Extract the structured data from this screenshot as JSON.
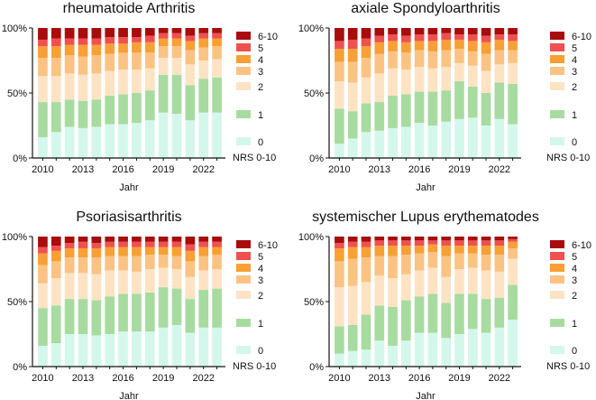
{
  "shared": {
    "x_axis_label": "Jahr",
    "x_tick_labels": [
      "2010",
      "2013",
      "2016",
      "2019",
      "2022"
    ],
    "y_tick_labels": [
      "0%",
      "50%",
      "100%"
    ],
    "legend_title": "NRS 0-10",
    "categories": [
      "0",
      "1",
      "2",
      "3",
      "4",
      "5",
      "6-10"
    ],
    "colors": [
      "#d4f7ec",
      "#a8dba0",
      "#fde3c4",
      "#fbc383",
      "#f8a035",
      "#f0504f",
      "#a80c0c"
    ]
  },
  "chart_data": [
    {
      "type": "bar",
      "stacked": true,
      "title": "rheumatoide Arthritis",
      "xlabel": "Jahr",
      "ylabel": "",
      "ylim": [
        0,
        100
      ],
      "legend_title": "NRS 0-10",
      "years": [
        2010,
        2011,
        2012,
        2013,
        2014,
        2015,
        2016,
        2017,
        2018,
        2019,
        2020,
        2021,
        2022,
        2023
      ],
      "series": [
        {
          "name": "0",
          "values": [
            16,
            20,
            24,
            23,
            24,
            26,
            26,
            27,
            29,
            35,
            34,
            29,
            35,
            35
          ]
        },
        {
          "name": "1",
          "values": [
            27,
            23,
            21,
            21,
            21,
            22,
            23,
            23,
            23,
            29,
            30,
            27,
            26,
            27
          ]
        },
        {
          "name": "2",
          "values": [
            20,
            20,
            20,
            20,
            20,
            19,
            19,
            18,
            17,
            13,
            13,
            16,
            14,
            14
          ]
        },
        {
          "name": "3",
          "values": [
            14,
            14,
            14,
            14,
            14,
            13,
            13,
            13,
            12,
            9,
            9,
            11,
            10,
            10
          ]
        },
        {
          "name": "4",
          "values": [
            9,
            9,
            8,
            9,
            8,
            8,
            7,
            8,
            8,
            6,
            6,
            7,
            7,
            6
          ]
        },
        {
          "name": "5",
          "values": [
            5,
            6,
            5,
            5,
            5,
            5,
            5,
            4,
            5,
            4,
            4,
            4,
            4,
            4
          ]
        },
        {
          "name": "6-10",
          "values": [
            9,
            8,
            8,
            8,
            8,
            7,
            7,
            7,
            6,
            4,
            4,
            6,
            4,
            4
          ]
        }
      ]
    },
    {
      "type": "bar",
      "stacked": true,
      "title": "axiale Spondyloarthritis",
      "xlabel": "Jahr",
      "ylabel": "",
      "ylim": [
        0,
        100
      ],
      "legend_title": "NRS 0-10",
      "years": [
        2010,
        2011,
        2012,
        2013,
        2014,
        2015,
        2016,
        2017,
        2018,
        2019,
        2020,
        2021,
        2022,
        2023
      ],
      "series": [
        {
          "name": "0",
          "values": [
            11,
            15,
            20,
            21,
            23,
            24,
            27,
            25,
            28,
            30,
            31,
            25,
            30,
            26
          ]
        },
        {
          "name": "1",
          "values": [
            27,
            21,
            22,
            22,
            25,
            25,
            24,
            26,
            24,
            29,
            24,
            25,
            28,
            31
          ]
        },
        {
          "name": "2",
          "values": [
            21,
            22,
            20,
            22,
            21,
            19,
            19,
            18,
            18,
            14,
            16,
            17,
            14,
            16
          ]
        },
        {
          "name": "3",
          "values": [
            15,
            16,
            15,
            15,
            13,
            13,
            13,
            13,
            13,
            11,
            11,
            13,
            11,
            10
          ]
        },
        {
          "name": "4",
          "values": [
            10,
            10,
            9,
            9,
            8,
            8,
            7,
            8,
            8,
            7,
            8,
            9,
            8,
            7
          ]
        },
        {
          "name": "5",
          "values": [
            6,
            7,
            6,
            5,
            5,
            5,
            5,
            5,
            5,
            4,
            5,
            5,
            4,
            5
          ]
        },
        {
          "name": "6-10",
          "values": [
            10,
            9,
            8,
            6,
            5,
            6,
            5,
            5,
            4,
            5,
            5,
            6,
            5,
            5
          ]
        }
      ]
    },
    {
      "type": "bar",
      "stacked": true,
      "title": "Psoriasisarthritis",
      "xlabel": "Jahr",
      "ylabel": "",
      "ylim": [
        0,
        100
      ],
      "legend_title": "NRS 0-10",
      "years": [
        2010,
        2011,
        2012,
        2013,
        2014,
        2015,
        2016,
        2017,
        2018,
        2019,
        2020,
        2021,
        2022,
        2023
      ],
      "series": [
        {
          "name": "0",
          "values": [
            16,
            18,
            25,
            25,
            24,
            25,
            27,
            27,
            27,
            30,
            32,
            26,
            30,
            30
          ]
        },
        {
          "name": "1",
          "values": [
            29,
            29,
            27,
            27,
            27,
            29,
            29,
            29,
            30,
            31,
            28,
            26,
            29,
            30
          ]
        },
        {
          "name": "2",
          "values": [
            19,
            21,
            20,
            20,
            20,
            20,
            18,
            17,
            18,
            15,
            15,
            17,
            15,
            15
          ]
        },
        {
          "name": "3",
          "values": [
            14,
            13,
            12,
            12,
            13,
            11,
            11,
            12,
            11,
            10,
            10,
            12,
            11,
            11
          ]
        },
        {
          "name": "4",
          "values": [
            9,
            8,
            7,
            7,
            7,
            7,
            7,
            7,
            6,
            6,
            7,
            8,
            7,
            6
          ]
        },
        {
          "name": "5",
          "values": [
            5,
            4,
            4,
            5,
            4,
            4,
            4,
            4,
            4,
            4,
            4,
            5,
            4,
            4
          ]
        },
        {
          "name": "6-10",
          "values": [
            8,
            7,
            5,
            4,
            5,
            4,
            4,
            4,
            4,
            4,
            4,
            6,
            4,
            4
          ]
        }
      ]
    },
    {
      "type": "bar",
      "stacked": true,
      "title": "systemischer Lupus erythematodes",
      "xlabel": "Jahr",
      "ylabel": "",
      "ylim": [
        0,
        100
      ],
      "legend_title": "NRS 0-10",
      "years": [
        2010,
        2011,
        2012,
        2013,
        2014,
        2015,
        2016,
        2017,
        2018,
        2019,
        2020,
        2021,
        2022,
        2023
      ],
      "series": [
        {
          "name": "0",
          "values": [
            10,
            12,
            13,
            20,
            16,
            20,
            26,
            26,
            22,
            25,
            29,
            26,
            30,
            36
          ]
        },
        {
          "name": "1",
          "values": [
            21,
            20,
            27,
            27,
            30,
            31,
            28,
            30,
            27,
            31,
            27,
            26,
            23,
            27
          ]
        },
        {
          "name": "2",
          "values": [
            30,
            30,
            25,
            23,
            22,
            20,
            20,
            20,
            20,
            19,
            20,
            22,
            20,
            20
          ]
        },
        {
          "name": "3",
          "values": [
            20,
            21,
            19,
            15,
            17,
            15,
            13,
            12,
            16,
            12,
            11,
            12,
            13,
            8
          ]
        },
        {
          "name": "4",
          "values": [
            10,
            9,
            8,
            8,
            8,
            7,
            6,
            6,
            8,
            6,
            6,
            7,
            7,
            5
          ]
        },
        {
          "name": "5",
          "values": [
            4,
            4,
            4,
            4,
            4,
            4,
            4,
            3,
            4,
            4,
            4,
            4,
            4,
            2
          ]
        },
        {
          "name": "6-10",
          "values": [
            5,
            4,
            4,
            3,
            3,
            3,
            3,
            3,
            3,
            3,
            3,
            3,
            3,
            2
          ]
        }
      ]
    }
  ]
}
